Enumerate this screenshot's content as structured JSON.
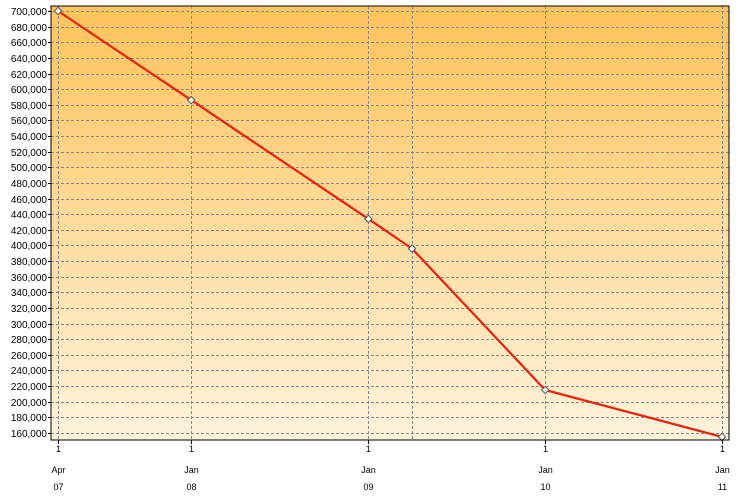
{
  "chart_data": {
    "type": "line",
    "title": "",
    "xlabel": "",
    "ylabel": "",
    "ylim": [
      150000,
      705000
    ],
    "grid": true,
    "legend": "none",
    "x_ticks": [
      {
        "day": "1",
        "month": "Apr",
        "year": "07",
        "date": "2007-04-01"
      },
      {
        "day": "1",
        "month": "Jan",
        "year": "08",
        "date": "2008-01-01"
      },
      {
        "day": "1",
        "month": "Jan",
        "year": "09",
        "date": "2009-01-01"
      },
      {
        "day": "1",
        "month": "Jan",
        "year": "10",
        "date": "2010-01-01"
      },
      {
        "day": "1",
        "month": "Jan",
        "year": "11",
        "date": "2011-01-01"
      }
    ],
    "y_ticks": [
      700000,
      680000,
      660000,
      640000,
      620000,
      600000,
      580000,
      560000,
      540000,
      520000,
      500000,
      480000,
      460000,
      440000,
      420000,
      400000,
      380000,
      360000,
      340000,
      320000,
      300000,
      280000,
      260000,
      240000,
      220000,
      200000,
      180000,
      160000
    ],
    "y_tick_labels": [
      "700,000",
      "680,000",
      "660,000",
      "640,000",
      "620,000",
      "600,000",
      "580,000",
      "560,000",
      "540,000",
      "520,000",
      "500,000",
      "480,000",
      "460,000",
      "440,000",
      "420,000",
      "400,000",
      "380,000",
      "360,000",
      "340,000",
      "320,000",
      "300,000",
      "280,000",
      "260,000",
      "240,000",
      "220,000",
      "200,000",
      "180,000",
      "160,000"
    ],
    "series": [
      {
        "color": "#e8200c",
        "points": [
          {
            "date": "2007-04-01",
            "y": 700000
          },
          {
            "date": "2008-01-01",
            "y": 586000
          },
          {
            "date": "2009-01-01",
            "y": 434000
          },
          {
            "date": "2009-04-01",
            "y": 396000
          },
          {
            "date": "2010-01-01",
            "y": 215000
          },
          {
            "date": "2011-01-01",
            "y": 155000
          }
        ]
      }
    ],
    "colors": {
      "background_top": "#ffc35a",
      "background_bottom": "#fff3dd",
      "grid": "#8a8a8a",
      "marker_fill": "#ffffff",
      "marker_stroke": "#555555"
    }
  }
}
